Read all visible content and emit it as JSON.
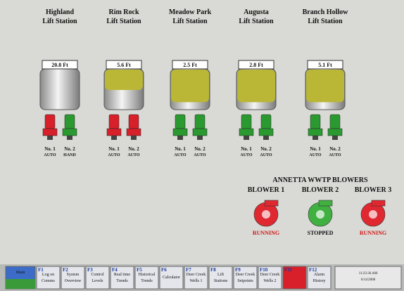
{
  "stations": [
    {
      "name": [
        "Highland",
        "Lift Station"
      ],
      "level": "20.8 Ft",
      "fill": 0,
      "pumps": [
        {
          "label": [
            "No. 1",
            "AUTO"
          ],
          "color": "#d8202a"
        },
        {
          "label": [
            "No. 2",
            "HAND"
          ],
          "color": "#2a9a30"
        }
      ]
    },
    {
      "name": [
        "Rim Rock",
        "Lift Station"
      ],
      "level": "5.6 Ft",
      "fill": 0.5,
      "pumps": [
        {
          "label": [
            "No. 1",
            "AUTO"
          ],
          "color": "#d8202a"
        },
        {
          "label": [
            "No. 2",
            "AUTO"
          ],
          "color": "#d8202a"
        }
      ]
    },
    {
      "name": [
        "Meadow Park",
        "Lift Station"
      ],
      "level": "2.5 Ft",
      "fill": 0.8,
      "pumps": [
        {
          "label": [
            "No. 1",
            "AUTO"
          ],
          "color": "#2a9a30"
        },
        {
          "label": [
            "No. 2",
            "AUTO"
          ],
          "color": "#2a9a30"
        }
      ]
    },
    {
      "name": [
        "Augusta",
        "Lift Station"
      ],
      "level": "2.8 Ft",
      "fill": 0.8,
      "pumps": [
        {
          "label": [
            "No. 1",
            "AUTO"
          ],
          "color": "#2a9a30"
        },
        {
          "label": [
            "No. 2",
            "AUTO"
          ],
          "color": "#2a9a30"
        }
      ]
    },
    {
      "name": [
        "Branch Hollow",
        "Lift Station"
      ],
      "level": "5.1 Ft",
      "fill": 0.8,
      "pumps": [
        {
          "label": [
            "No. 1",
            "AUTO"
          ],
          "color": "#2a9a30"
        },
        {
          "label": [
            "No. 2",
            "AUTO"
          ],
          "color": "#2a9a30"
        }
      ]
    }
  ],
  "blowers": {
    "title": "ANNETTA WWTP BLOWERS",
    "items": [
      {
        "name": "BLOWER 1",
        "status": "RUNNING",
        "color": "#e02830"
      },
      {
        "name": "BLOWER 2",
        "status": "STOPPED",
        "color": "#40b040"
      },
      {
        "name": "BLOWER 3",
        "status": "RUNNING",
        "color": "#e02830"
      }
    ]
  },
  "keys": [
    {
      "key": "",
      "label": [
        "Main"
      ]
    },
    {
      "key": "F1",
      "label": [
        "Log on",
        "Comms"
      ]
    },
    {
      "key": "F2",
      "label": [
        "System",
        "Overview"
      ]
    },
    {
      "key": "F3",
      "label": [
        "Control",
        "Levels"
      ]
    },
    {
      "key": "F4",
      "label": [
        "Real time",
        "Trends"
      ]
    },
    {
      "key": "F5",
      "label": [
        "Historical",
        "Trends"
      ]
    },
    {
      "key": "F6",
      "label": [
        "Calculator"
      ]
    },
    {
      "key": "F7",
      "label": [
        "Deer Creek",
        "Wells 1"
      ]
    },
    {
      "key": "F8",
      "label": [
        "Lift",
        "Stations"
      ]
    },
    {
      "key": "F9",
      "label": [
        "Deer Creek",
        "Setpoints"
      ]
    },
    {
      "key": "F10",
      "label": [
        "Deer Creek",
        "Wells 2"
      ]
    },
    {
      "key": "F11",
      "label": []
    },
    {
      "key": "F12",
      "label": [
        "Alarm",
        "History"
      ]
    }
  ],
  "clock": [
    "11:23:36 AM",
    "6/14/2008"
  ]
}
